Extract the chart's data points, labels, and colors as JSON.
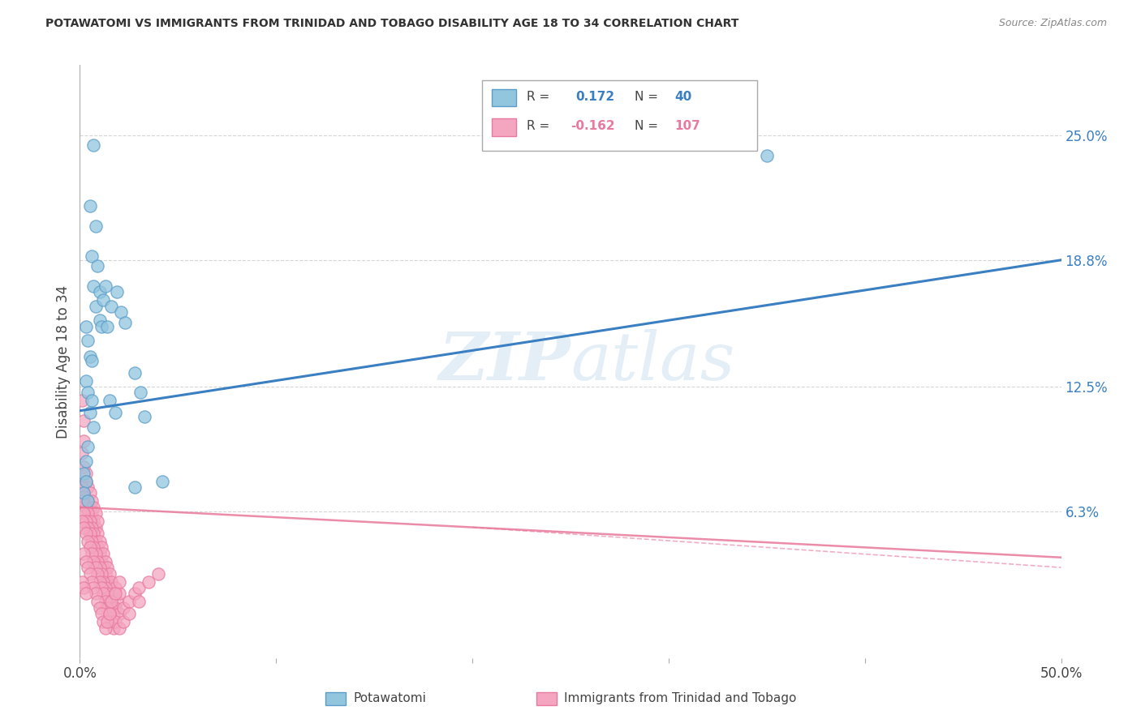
{
  "title": "POTAWATOMI VS IMMIGRANTS FROM TRINIDAD AND TOBAGO DISABILITY AGE 18 TO 34 CORRELATION CHART",
  "source": "Source: ZipAtlas.com",
  "ylabel": "Disability Age 18 to 34",
  "xlim": [
    0.0,
    0.5
  ],
  "ylim": [
    -0.01,
    0.285
  ],
  "x_ticks": [
    0.0,
    0.1,
    0.2,
    0.3,
    0.4,
    0.5
  ],
  "x_tick_labels": [
    "0.0%",
    "",
    "",
    "",
    "",
    "50.0%"
  ],
  "y_ticks_right": [
    0.063,
    0.125,
    0.188,
    0.25
  ],
  "y_tick_labels_right": [
    "6.3%",
    "12.5%",
    "18.8%",
    "25.0%"
  ],
  "color_blue": "#92c5de",
  "color_pink": "#f4a6c0",
  "color_blue_edge": "#5b9dc9",
  "color_pink_edge": "#e879a0",
  "trendline_blue_color": "#3a7fc1",
  "trendline_pink_color": "#e8789a",
  "watermark": "ZIPatlas",
  "background_color": "#ffffff",
  "grid_color": "#cccccc",
  "blue_trend_x": [
    0.0,
    0.5
  ],
  "blue_trend_y": [
    0.113,
    0.188
  ],
  "pink_trend_x": [
    0.0,
    0.5
  ],
  "pink_trend_y": [
    0.065,
    0.04
  ],
  "potawatomi_points": [
    [
      0.007,
      0.245
    ],
    [
      0.005,
      0.215
    ],
    [
      0.008,
      0.205
    ],
    [
      0.006,
      0.19
    ],
    [
      0.009,
      0.185
    ],
    [
      0.007,
      0.175
    ],
    [
      0.01,
      0.172
    ],
    [
      0.008,
      0.165
    ],
    [
      0.012,
      0.168
    ],
    [
      0.01,
      0.158
    ],
    [
      0.011,
      0.155
    ],
    [
      0.013,
      0.175
    ],
    [
      0.016,
      0.165
    ],
    [
      0.014,
      0.155
    ],
    [
      0.019,
      0.172
    ],
    [
      0.021,
      0.162
    ],
    [
      0.023,
      0.157
    ],
    [
      0.003,
      0.155
    ],
    [
      0.004,
      0.148
    ],
    [
      0.005,
      0.14
    ],
    [
      0.006,
      0.138
    ],
    [
      0.003,
      0.128
    ],
    [
      0.004,
      0.122
    ],
    [
      0.006,
      0.118
    ],
    [
      0.005,
      0.112
    ],
    [
      0.007,
      0.105
    ],
    [
      0.004,
      0.095
    ],
    [
      0.003,
      0.088
    ],
    [
      0.002,
      0.082
    ],
    [
      0.003,
      0.078
    ],
    [
      0.002,
      0.072
    ],
    [
      0.004,
      0.068
    ],
    [
      0.015,
      0.118
    ],
    [
      0.018,
      0.112
    ],
    [
      0.028,
      0.132
    ],
    [
      0.031,
      0.122
    ],
    [
      0.033,
      0.11
    ],
    [
      0.028,
      0.075
    ],
    [
      0.042,
      0.078
    ],
    [
      0.35,
      0.24
    ]
  ],
  "trinidad_points": [
    [
      0.001,
      0.118
    ],
    [
      0.002,
      0.108
    ],
    [
      0.002,
      0.098
    ],
    [
      0.001,
      0.092
    ],
    [
      0.002,
      0.085
    ],
    [
      0.003,
      0.082
    ],
    [
      0.003,
      0.078
    ],
    [
      0.002,
      0.072
    ],
    [
      0.004,
      0.075
    ],
    [
      0.004,
      0.068
    ],
    [
      0.005,
      0.072
    ],
    [
      0.005,
      0.065
    ],
    [
      0.006,
      0.068
    ],
    [
      0.006,
      0.062
    ],
    [
      0.007,
      0.065
    ],
    [
      0.007,
      0.058
    ],
    [
      0.008,
      0.062
    ],
    [
      0.008,
      0.055
    ],
    [
      0.009,
      0.058
    ],
    [
      0.009,
      0.052
    ],
    [
      0.001,
      0.075
    ],
    [
      0.002,
      0.07
    ],
    [
      0.003,
      0.065
    ],
    [
      0.004,
      0.062
    ],
    [
      0.005,
      0.058
    ],
    [
      0.006,
      0.055
    ],
    [
      0.007,
      0.052
    ],
    [
      0.008,
      0.048
    ],
    [
      0.009,
      0.045
    ],
    [
      0.01,
      0.048
    ],
    [
      0.01,
      0.042
    ],
    [
      0.011,
      0.045
    ],
    [
      0.011,
      0.038
    ],
    [
      0.012,
      0.042
    ],
    [
      0.012,
      0.035
    ],
    [
      0.013,
      0.038
    ],
    [
      0.013,
      0.032
    ],
    [
      0.014,
      0.035
    ],
    [
      0.014,
      0.028
    ],
    [
      0.015,
      0.032
    ],
    [
      0.015,
      0.025
    ],
    [
      0.016,
      0.028
    ],
    [
      0.017,
      0.022
    ],
    [
      0.018,
      0.025
    ],
    [
      0.019,
      0.018
    ],
    [
      0.02,
      0.022
    ],
    [
      0.001,
      0.068
    ],
    [
      0.002,
      0.062
    ],
    [
      0.003,
      0.058
    ],
    [
      0.004,
      0.055
    ],
    [
      0.005,
      0.052
    ],
    [
      0.006,
      0.048
    ],
    [
      0.007,
      0.045
    ],
    [
      0.008,
      0.042
    ],
    [
      0.009,
      0.038
    ],
    [
      0.01,
      0.035
    ],
    [
      0.011,
      0.032
    ],
    [
      0.012,
      0.028
    ],
    [
      0.013,
      0.025
    ],
    [
      0.014,
      0.022
    ],
    [
      0.015,
      0.018
    ],
    [
      0.016,
      0.015
    ],
    [
      0.017,
      0.012
    ],
    [
      0.018,
      0.015
    ],
    [
      0.02,
      0.012
    ],
    [
      0.022,
      0.015
    ],
    [
      0.025,
      0.018
    ],
    [
      0.028,
      0.022
    ],
    [
      0.03,
      0.018
    ],
    [
      0.001,
      0.058
    ],
    [
      0.002,
      0.055
    ],
    [
      0.003,
      0.052
    ],
    [
      0.004,
      0.048
    ],
    [
      0.005,
      0.045
    ],
    [
      0.006,
      0.042
    ],
    [
      0.007,
      0.038
    ],
    [
      0.008,
      0.035
    ],
    [
      0.009,
      0.032
    ],
    [
      0.01,
      0.028
    ],
    [
      0.011,
      0.025
    ],
    [
      0.012,
      0.022
    ],
    [
      0.013,
      0.018
    ],
    [
      0.014,
      0.015
    ],
    [
      0.015,
      0.012
    ],
    [
      0.016,
      0.008
    ],
    [
      0.017,
      0.005
    ],
    [
      0.018,
      0.008
    ],
    [
      0.02,
      0.005
    ],
    [
      0.022,
      0.008
    ],
    [
      0.025,
      0.012
    ],
    [
      0.002,
      0.042
    ],
    [
      0.003,
      0.038
    ],
    [
      0.004,
      0.035
    ],
    [
      0.005,
      0.032
    ],
    [
      0.006,
      0.028
    ],
    [
      0.007,
      0.025
    ],
    [
      0.008,
      0.022
    ],
    [
      0.009,
      0.018
    ],
    [
      0.01,
      0.015
    ],
    [
      0.011,
      0.012
    ],
    [
      0.012,
      0.008
    ],
    [
      0.013,
      0.005
    ],
    [
      0.014,
      0.008
    ],
    [
      0.015,
      0.012
    ],
    [
      0.016,
      0.018
    ],
    [
      0.018,
      0.022
    ],
    [
      0.02,
      0.028
    ],
    [
      0.03,
      0.025
    ],
    [
      0.035,
      0.028
    ],
    [
      0.04,
      0.032
    ],
    [
      0.001,
      0.028
    ],
    [
      0.002,
      0.025
    ],
    [
      0.003,
      0.022
    ]
  ]
}
